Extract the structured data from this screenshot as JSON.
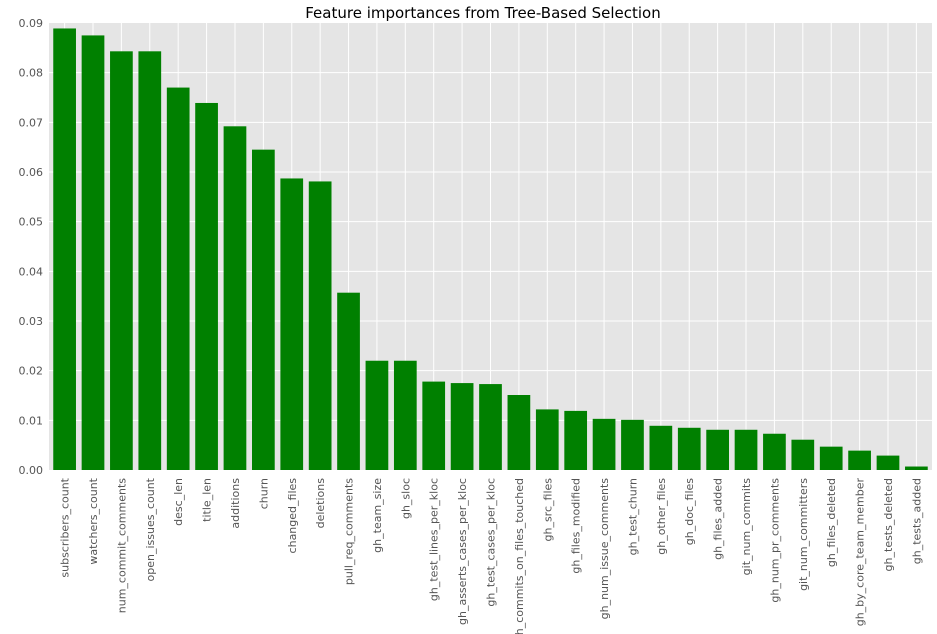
{
  "chart_data": {
    "type": "bar",
    "title": "Feature importances from Tree-Based Selection",
    "xlabel": "",
    "ylabel": "",
    "ylim": [
      0,
      0.09
    ],
    "yticks": [
      "0.00",
      "0.01",
      "0.02",
      "0.03",
      "0.04",
      "0.05",
      "0.06",
      "0.07",
      "0.08",
      "0.09"
    ],
    "grid": true,
    "legend": "none",
    "bar_color": "#008000",
    "background_color": "#e5e5e5",
    "categories": [
      "subscribers_count",
      "watchers_count",
      "num_commit_comments",
      "open_issues_count",
      "desc_len",
      "title_len",
      "additions",
      "churn",
      "changed_files",
      "deletions",
      "pull_req_comments",
      "gh_team_size",
      "gh_sloc",
      "gh_test_lines_per_kloc",
      "gh_asserts_cases_per_kloc",
      "gh_test_cases_per_kloc",
      "gh_commits_on_files_touched",
      "gh_src_files",
      "gh_files_modified",
      "gh_num_issue_comments",
      "gh_test_churn",
      "gh_other_files",
      "gh_doc_files",
      "gh_files_added",
      "git_num_commits",
      "gh_num_pr_comments",
      "git_num_committers",
      "gh_files_deleted",
      "gh_by_core_team_member",
      "gh_tests_deleted",
      "gh_tests_added"
    ],
    "values": [
      0.0889,
      0.0875,
      0.0843,
      0.0843,
      0.077,
      0.0739,
      0.0692,
      0.0645,
      0.0587,
      0.0581,
      0.0357,
      0.022,
      0.022,
      0.0178,
      0.0175,
      0.0173,
      0.0151,
      0.0122,
      0.0119,
      0.0103,
      0.0101,
      0.0089,
      0.0085,
      0.0081,
      0.0081,
      0.0073,
      0.0061,
      0.0047,
      0.0039,
      0.0029,
      0.0007
    ]
  }
}
